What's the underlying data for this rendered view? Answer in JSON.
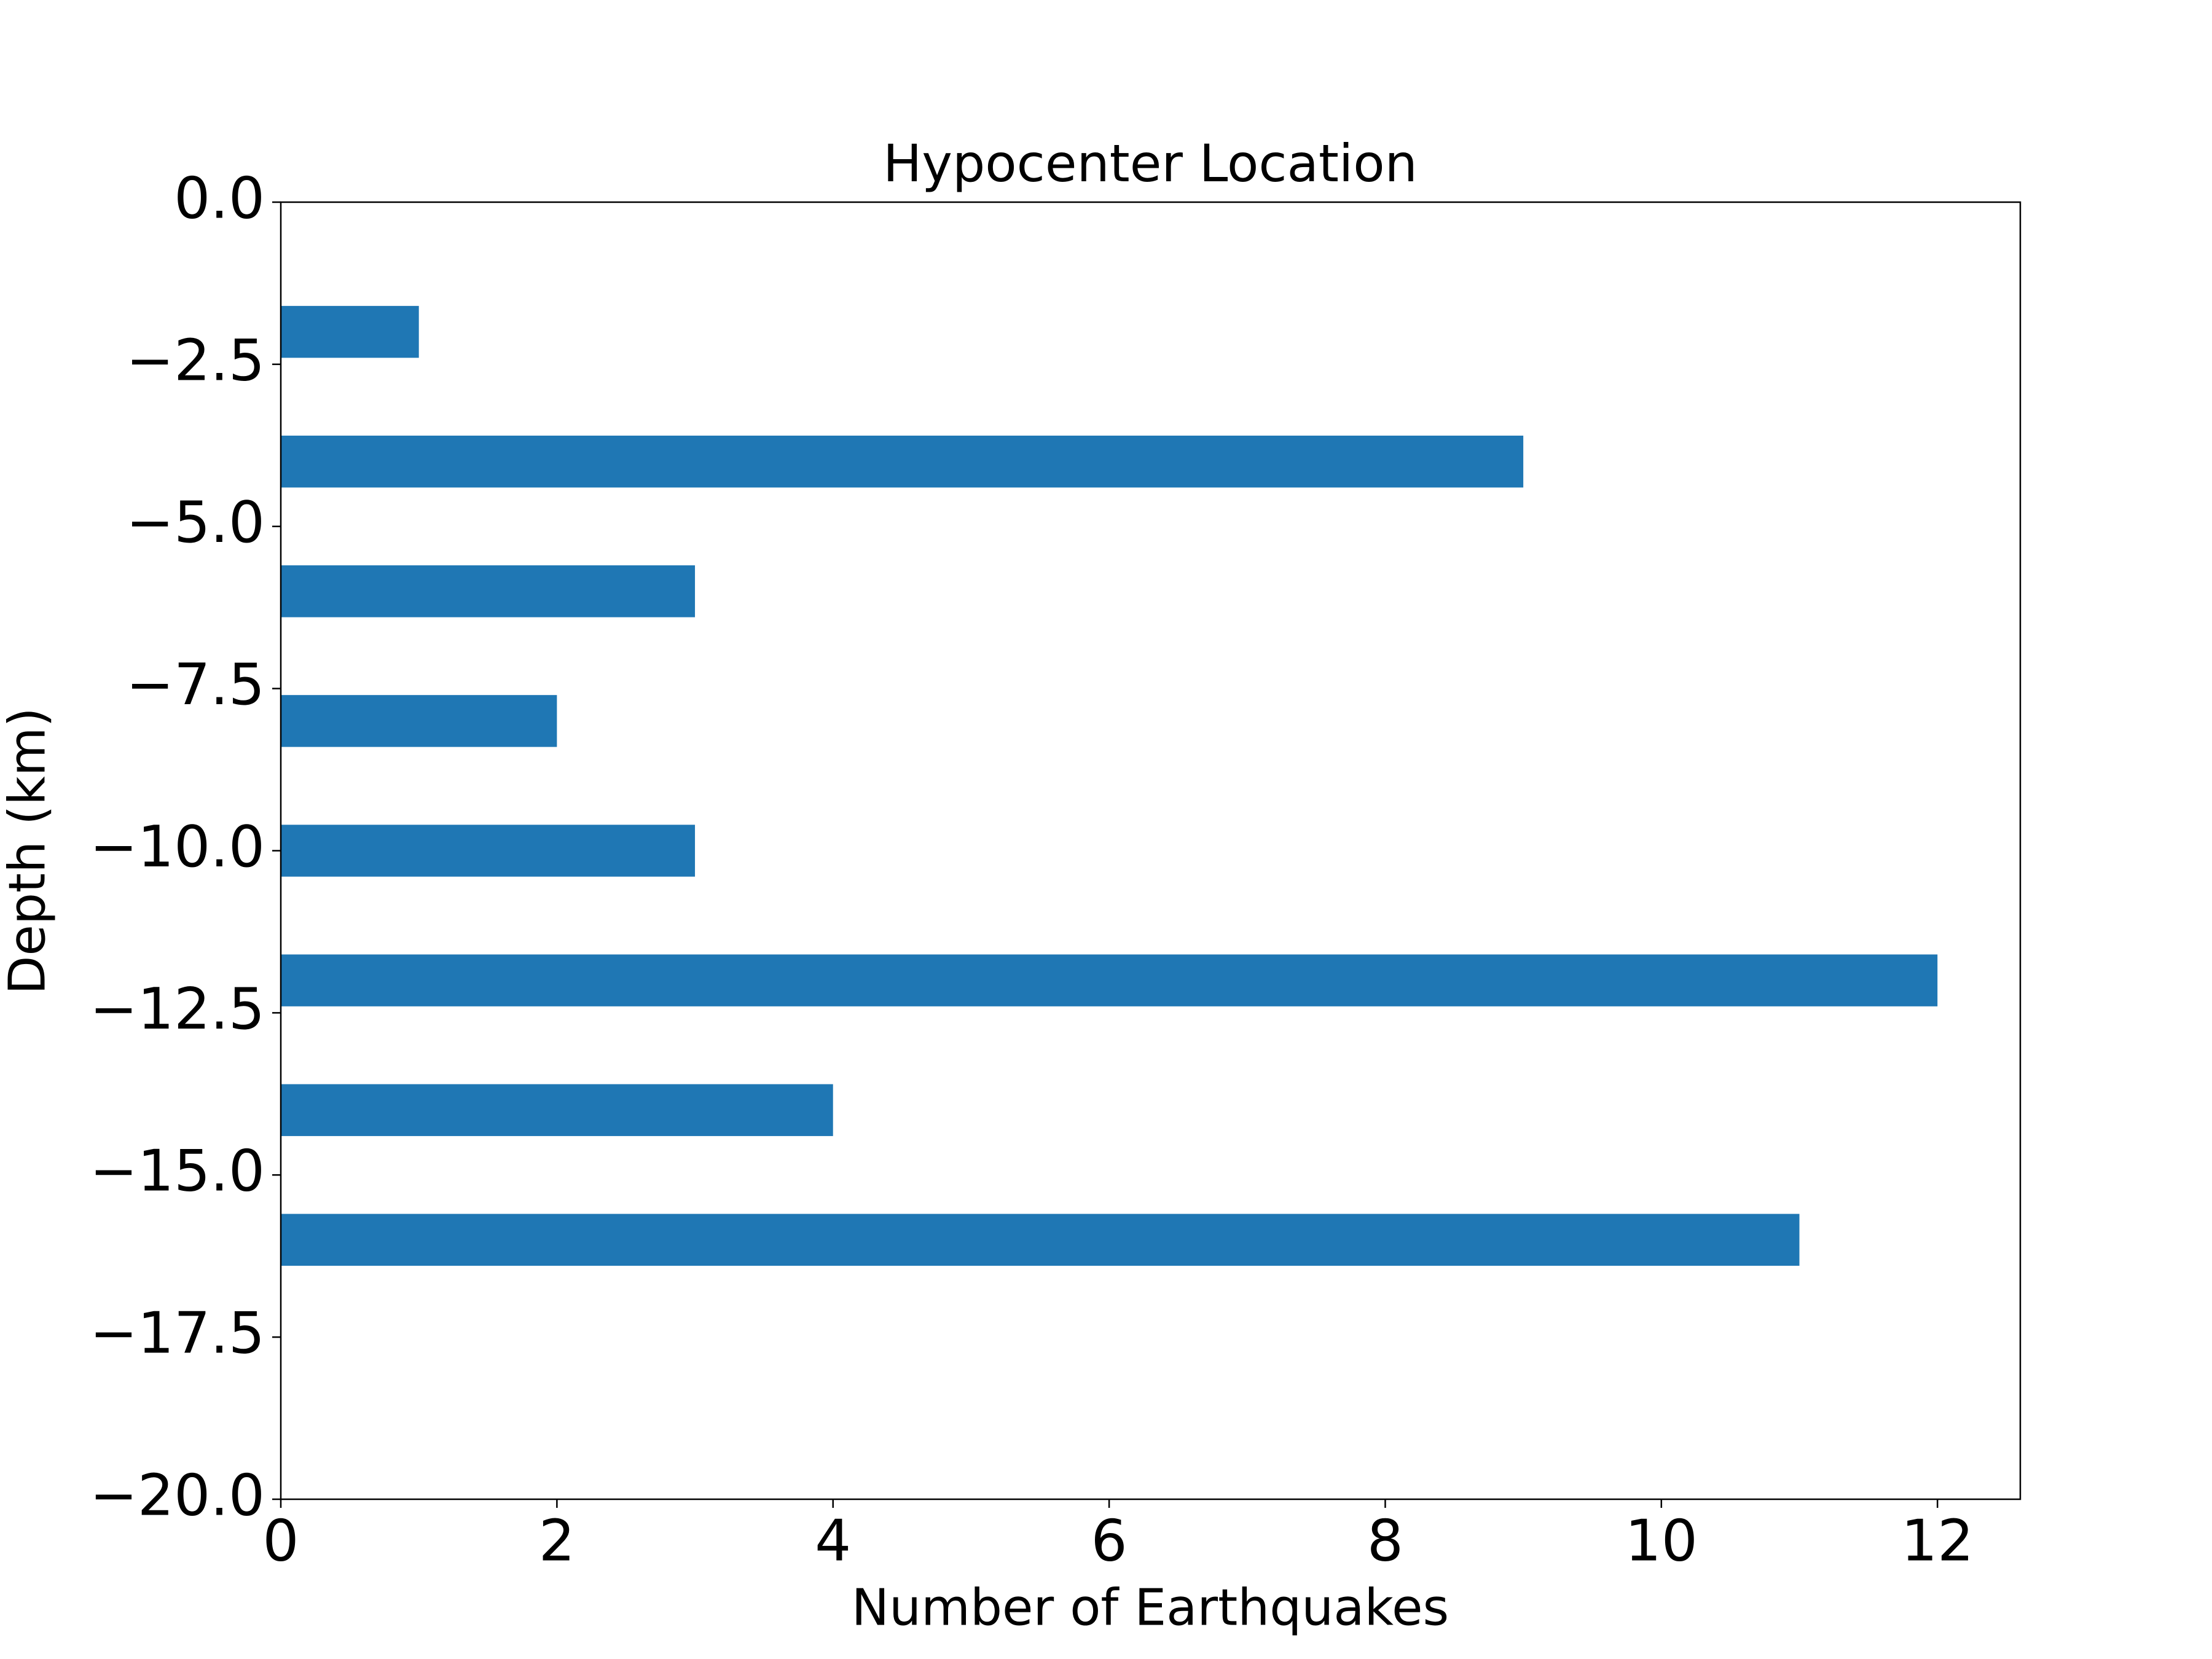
{
  "chart_data": {
    "type": "bar",
    "orientation": "horizontal",
    "title": "Hypocenter Location",
    "xlabel": "Number of Earthquakes",
    "ylabel": "Depth (km)",
    "y": [
      -2,
      -4,
      -6,
      -8,
      -10,
      -12,
      -14,
      -16
    ],
    "values": [
      1,
      9,
      3,
      2,
      3,
      12,
      4,
      11
    ],
    "color": "#1f77b4",
    "xlim": [
      0,
      12.6
    ],
    "xticks": [
      0,
      2,
      4,
      6,
      8,
      10,
      12
    ],
    "ylim": [
      -20,
      0
    ],
    "yticks": [
      {
        "value": -20,
        "label": "−20.0"
      },
      {
        "value": -17.5,
        "label": "−17.5"
      },
      {
        "value": -15,
        "label": "−15.0"
      },
      {
        "value": -12.5,
        "label": "−12.5"
      },
      {
        "value": -10,
        "label": "−10.0"
      },
      {
        "value": -7.5,
        "label": "−7.5"
      },
      {
        "value": -5,
        "label": "−5.0"
      },
      {
        "value": -2.5,
        "label": "−2.5"
      },
      {
        "value": 0,
        "label": "0.0"
      }
    ],
    "grid": false
  }
}
